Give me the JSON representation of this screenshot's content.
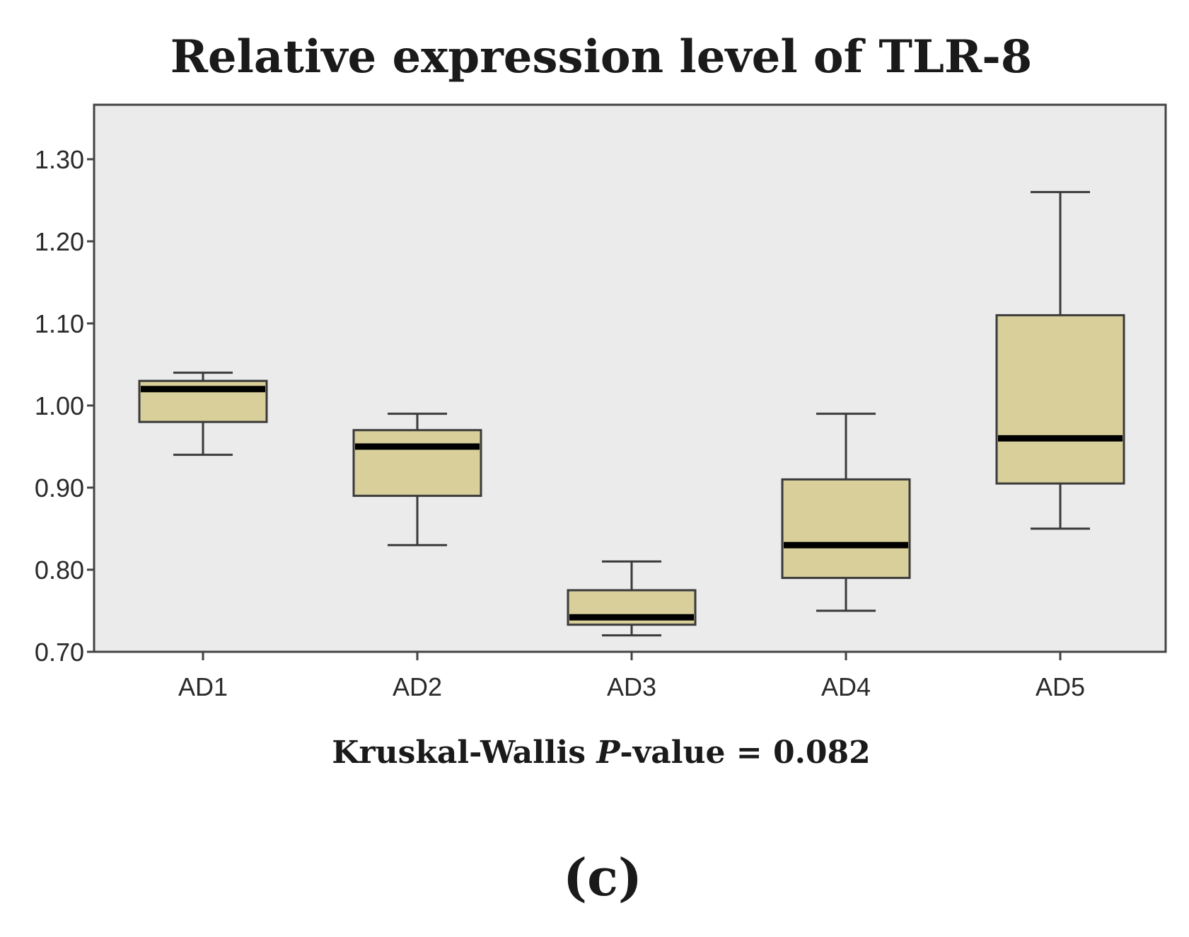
{
  "chart_data": {
    "type": "boxplot",
    "title": "Relative expression level of TLR-8",
    "xlabel": "",
    "ylabel": "",
    "ylim": [
      0.7,
      1.37
    ],
    "yticks": [
      "0.70",
      "0.80",
      "0.90",
      "1.00",
      "1.10",
      "1.20",
      "1.30"
    ],
    "categories": [
      "AD1",
      "AD2",
      "AD3",
      "AD4",
      "AD5"
    ],
    "boxes": [
      {
        "name": "AD1",
        "min": 0.94,
        "q1": 0.98,
        "median": 1.02,
        "q3": 1.03,
        "max": 1.04
      },
      {
        "name": "AD2",
        "min": 0.83,
        "q1": 0.89,
        "median": 0.95,
        "q3": 0.97,
        "max": 0.99
      },
      {
        "name": "AD3",
        "min": 0.72,
        "q1": 0.733,
        "median": 0.742,
        "q3": 0.775,
        "max": 0.81
      },
      {
        "name": "AD4",
        "min": 0.75,
        "q1": 0.79,
        "median": 0.83,
        "q3": 0.91,
        "max": 0.99
      },
      {
        "name": "AD5",
        "min": 0.85,
        "q1": 0.905,
        "median": 0.96,
        "q3": 1.11,
        "max": 1.26
      }
    ],
    "annotation_prefix": "Kruskal-Wallis ",
    "annotation_italic": "P",
    "annotation_suffix": "-value = 0.082",
    "colors": {
      "plot_background": "#ebebeb",
      "box_fill": "#d8cf9b",
      "box_stroke": "#3a3a3a",
      "median": "#000000",
      "frame": "#444444"
    }
  },
  "panel_label": "(c)"
}
